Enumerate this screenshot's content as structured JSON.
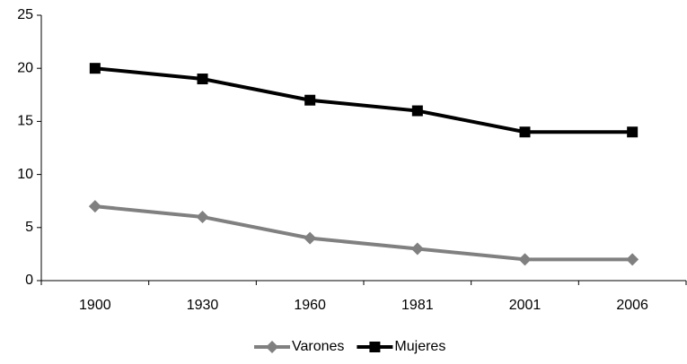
{
  "chart_data": {
    "type": "line",
    "categories": [
      "1900",
      "1930",
      "1960",
      "1981",
      "2001",
      "2006"
    ],
    "series": [
      {
        "name": "Varones",
        "color": "#808080",
        "marker": "diamond",
        "values": [
          7,
          6,
          4,
          3,
          2,
          2
        ]
      },
      {
        "name": "Mujeres",
        "color": "#000000",
        "marker": "square",
        "values": [
          20,
          19,
          17,
          16,
          14,
          14
        ]
      }
    ],
    "ylim": [
      0,
      25
    ],
    "yticks": [
      0,
      5,
      10,
      15,
      20,
      25
    ],
    "grid": false,
    "legend": "bottom"
  }
}
